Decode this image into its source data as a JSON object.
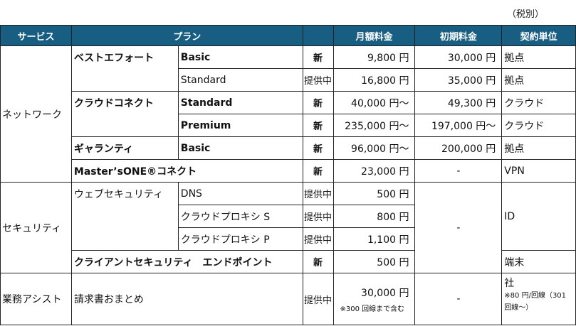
{
  "tax_note": "（税別）",
  "headers": {
    "service": "サービス",
    "plan": "プラン",
    "monthly": "月額料金",
    "initial": "初期料金",
    "unit": "契約単位"
  },
  "network": {
    "service": "ネットワーク",
    "rows": [
      {
        "plan": "ベストエフォート",
        "sub": "Basic",
        "badge": "新",
        "monthly": "9,800 円",
        "initial": "30,000 円",
        "unit": "拠点"
      },
      {
        "sub": "Standard",
        "badge": "提供中",
        "monthly": "16,800 円",
        "initial": "35,000 円",
        "unit": "拠点"
      },
      {
        "plan": "クラウドコネクト",
        "sub": "Standard",
        "badge": "新",
        "monthly": "40,000 円～",
        "initial": "49,300 円",
        "unit": "クラウド"
      },
      {
        "sub": "Premium",
        "badge": "新",
        "monthly": "235,000 円～",
        "initial": "197,000 円～",
        "unit": "クラウド"
      },
      {
        "plan": "ギャランティ",
        "sub": "Basic",
        "badge": "新",
        "monthly": "96,000 円～",
        "initial": "200,000 円",
        "unit": "拠点"
      },
      {
        "plan": "Master’sONE®コネクト",
        "badge": "新",
        "monthly": "23,000 円",
        "initial": "-",
        "unit": "VPN"
      }
    ]
  },
  "security": {
    "service": "セキュリティ",
    "initial": "-",
    "rows": [
      {
        "plan": "ウェブセキュリティ",
        "sub": "DNS",
        "badge": "提供中",
        "monthly": "500 円",
        "unit": "ID"
      },
      {
        "sub": "クラウドプロキシ S",
        "badge": "提供中",
        "monthly": "800 円"
      },
      {
        "sub": "クラウドプロキシ P",
        "badge": "提供中",
        "monthly": "1,100 円"
      },
      {
        "plan": "クライアントセキュリティ　エンドポイント",
        "badge": "新",
        "monthly": "500 円",
        "unit": "端末"
      }
    ]
  },
  "assist": {
    "service": "業務アシスト",
    "plan": "請求書おまとめ",
    "badge": "提供中",
    "monthly": "30,000 円",
    "monthly_note": "※300 回線まで含む",
    "initial": "-",
    "unit": "社",
    "unit_note": "※80 円/回線（301 回線～）"
  }
}
